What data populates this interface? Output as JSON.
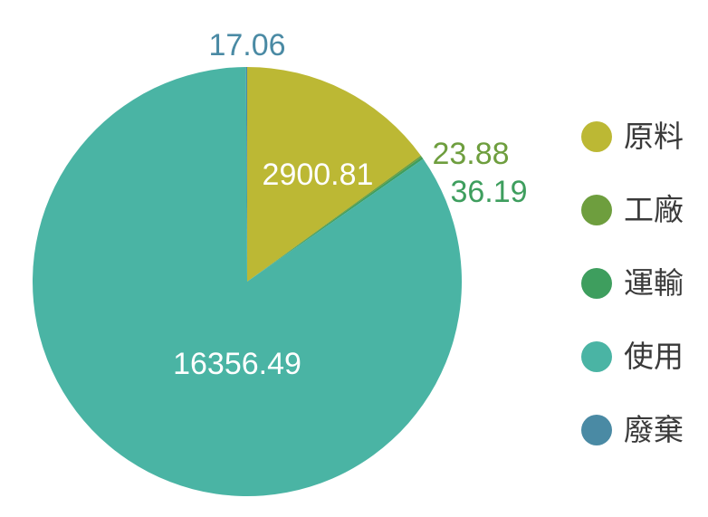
{
  "chart_data": {
    "type": "pie",
    "categories": [
      "原料",
      "工廠",
      "運輸",
      "使用",
      "廢棄"
    ],
    "values": [
      2900.81,
      23.88,
      36.19,
      16356.49,
      17.06
    ],
    "value_labels": [
      "2900.81",
      "23.88",
      "36.19",
      "16356.49",
      "17.06"
    ],
    "colors": [
      "#bcb834",
      "#6e9e3e",
      "#3e9e5e",
      "#4ab4a4",
      "#4a8aa4"
    ],
    "label_colors": [
      "#ffffff",
      "#6e9e3e",
      "#3e9e5e",
      "#ffffff",
      "#4a8aa4"
    ],
    "start_angle_deg": 0,
    "direction": "clockwise",
    "legend_position": "right"
  }
}
